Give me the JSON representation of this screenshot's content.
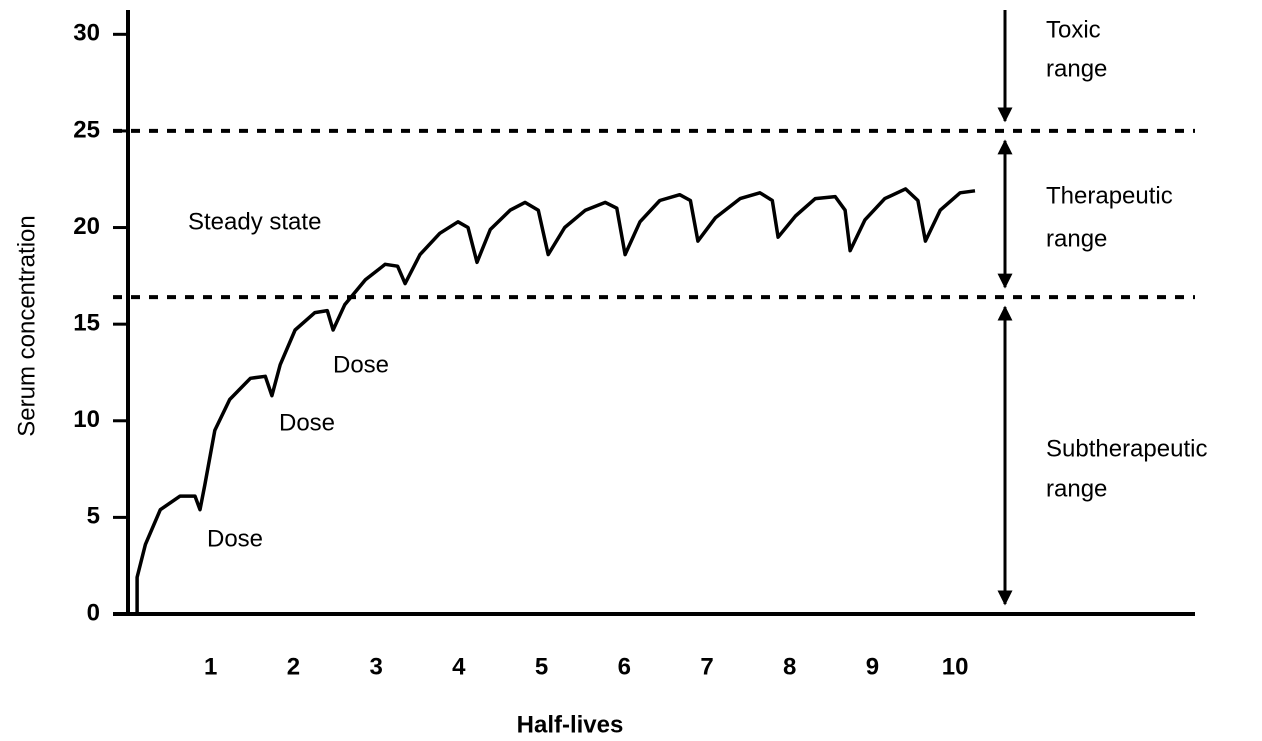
{
  "chart_data": {
    "type": "line",
    "xlabel": "Half-lives",
    "ylabel": "Serum concentration",
    "xlim": [
      0,
      12.9
    ],
    "ylim": [
      0,
      31
    ],
    "xticks": [
      1,
      2,
      3,
      4,
      5,
      6,
      7,
      8,
      9,
      10
    ],
    "yticks": [
      0,
      5,
      10,
      15,
      20,
      25,
      30
    ],
    "color": "#000000",
    "x": [
      0.11,
      0.11,
      0.21,
      0.39,
      0.63,
      0.81,
      0.87,
      0.93,
      1.05,
      1.23,
      1.48,
      1.66,
      1.74,
      1.84,
      2.02,
      2.26,
      2.41,
      2.48,
      2.62,
      2.87,
      3.11,
      3.26,
      3.35,
      3.53,
      3.77,
      3.99,
      4.11,
      4.22,
      4.38,
      4.62,
      4.8,
      4.96,
      5.08,
      5.28,
      5.53,
      5.77,
      5.91,
      6.01,
      6.19,
      6.43,
      6.67,
      6.8,
      6.89,
      7.1,
      7.4,
      7.64,
      7.79,
      7.86,
      8.07,
      8.31,
      8.55,
      8.67,
      8.73,
      8.91,
      9.15,
      9.4,
      9.55,
      9.64,
      9.82,
      10.06,
      10.24
    ],
    "values": [
      0,
      1.9,
      3.6,
      5.4,
      6.1,
      6.1,
      5.4,
      6.7,
      9.5,
      11.1,
      12.2,
      12.3,
      11.3,
      12.9,
      14.7,
      15.6,
      15.7,
      14.7,
      16.0,
      17.3,
      18.1,
      18.0,
      17.1,
      18.6,
      19.7,
      20.3,
      20.0,
      18.2,
      19.9,
      20.9,
      21.3,
      20.9,
      18.6,
      20.0,
      20.9,
      21.3,
      21.0,
      18.6,
      20.3,
      21.4,
      21.7,
      21.4,
      19.3,
      20.5,
      21.5,
      21.8,
      21.4,
      19.5,
      20.6,
      21.5,
      21.6,
      20.9,
      18.8,
      20.4,
      21.5,
      22.0,
      21.4,
      19.3,
      20.9,
      21.8,
      21.9
    ],
    "hlines": [
      25,
      16.4
    ],
    "annotation": "Steady state",
    "dose_labels": [
      "Dose",
      "Dose",
      "Dose"
    ],
    "range_labels": [
      [
        "Toxic",
        "range"
      ],
      [
        "Therapeutic",
        "range"
      ],
      [
        "Subtherapeutic",
        "range"
      ]
    ]
  }
}
